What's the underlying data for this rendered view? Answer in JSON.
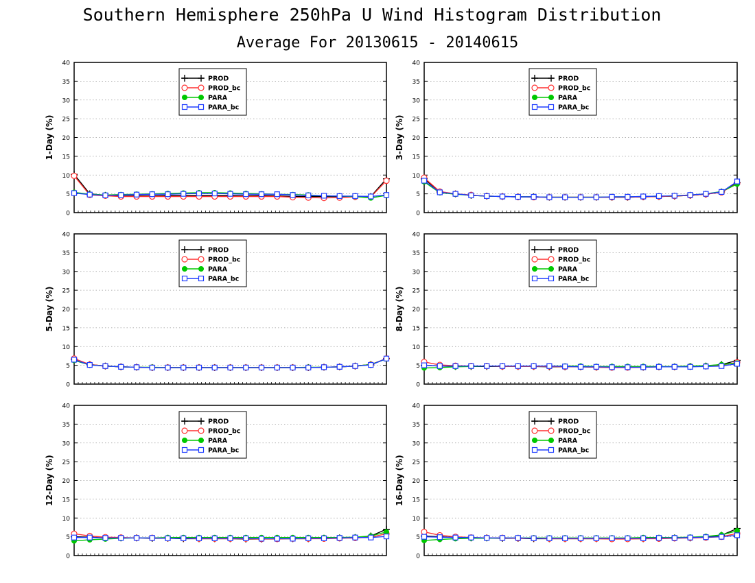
{
  "page": {
    "title": "Southern Hemisphere 250hPa U Wind Histogram Distribution",
    "subtitle": "Average For 20130615 - 20140615"
  },
  "series_meta": [
    {
      "name": "PROD",
      "color": "#000000",
      "marker": "plus"
    },
    {
      "name": "PROD_bc",
      "color": "#ff3030",
      "marker": "circle"
    },
    {
      "name": "PARA",
      "color": "#00c800",
      "marker": "dot"
    },
    {
      "name": "PARA_bc",
      "color": "#1e3cff",
      "marker": "square"
    }
  ],
  "chart_data": [
    {
      "type": "line",
      "ylabel": "1-Day (%)",
      "ylim": [
        0,
        40
      ],
      "yticks": [
        0,
        5,
        10,
        15,
        20,
        25,
        30,
        35,
        40
      ],
      "grid": "horizontal-dotted",
      "legend_position": "top-center",
      "x": [
        1,
        2,
        3,
        4,
        5,
        6,
        7,
        8,
        9,
        10,
        11,
        12,
        13,
        14,
        15,
        16,
        17,
        18,
        19,
        20,
        21
      ],
      "series": [
        {
          "name": "PROD",
          "values": [
            10.2,
            5.0,
            4.6,
            4.4,
            4.5,
            4.5,
            4.6,
            4.6,
            4.6,
            4.6,
            4.6,
            4.5,
            4.6,
            4.5,
            4.3,
            4.3,
            4.3,
            4.3,
            4.3,
            4.3,
            9.0
          ]
        },
        {
          "name": "PROD_bc",
          "values": [
            9.8,
            4.7,
            4.5,
            4.3,
            4.3,
            4.3,
            4.3,
            4.3,
            4.3,
            4.3,
            4.3,
            4.3,
            4.3,
            4.3,
            4.1,
            4.0,
            3.9,
            4.0,
            4.2,
            4.2,
            8.5
          ]
        },
        {
          "name": "PARA",
          "values": [
            5.4,
            4.9,
            4.7,
            4.8,
            4.9,
            5.0,
            5.1,
            5.2,
            5.3,
            5.3,
            5.2,
            5.1,
            5.0,
            4.9,
            4.8,
            4.7,
            4.5,
            4.4,
            4.3,
            3.9,
            4.6
          ]
        },
        {
          "name": "PARA_bc",
          "values": [
            5.2,
            4.8,
            4.6,
            4.7,
            4.8,
            4.9,
            4.9,
            5.0,
            5.1,
            5.1,
            5.0,
            4.9,
            4.9,
            4.9,
            4.7,
            4.6,
            4.5,
            4.4,
            4.4,
            4.3,
            4.7
          ]
        }
      ]
    },
    {
      "type": "line",
      "ylabel": "3-Day (%)",
      "ylim": [
        0,
        40
      ],
      "yticks": [
        0,
        5,
        10,
        15,
        20,
        25,
        30,
        35,
        40
      ],
      "grid": "horizontal-dotted",
      "legend_position": "top-center",
      "x": [
        1,
        2,
        3,
        4,
        5,
        6,
        7,
        8,
        9,
        10,
        11,
        12,
        13,
        14,
        15,
        16,
        17,
        18,
        19,
        20,
        21
      ],
      "series": [
        {
          "name": "PROD",
          "values": [
            9.0,
            5.5,
            5.0,
            4.6,
            4.4,
            4.3,
            4.2,
            4.2,
            4.1,
            4.1,
            4.1,
            4.1,
            4.1,
            4.1,
            4.2,
            4.3,
            4.4,
            4.6,
            4.9,
            5.5,
            8.0
          ]
        },
        {
          "name": "PROD_bc",
          "values": [
            9.3,
            5.6,
            5.0,
            4.7,
            4.4,
            4.3,
            4.2,
            4.1,
            4.1,
            4.1,
            4.1,
            4.1,
            4.1,
            4.1,
            4.2,
            4.3,
            4.4,
            4.6,
            4.9,
            5.4,
            7.8
          ]
        },
        {
          "name": "PARA",
          "values": [
            8.2,
            5.3,
            4.9,
            4.6,
            4.4,
            4.3,
            4.2,
            4.2,
            4.1,
            4.1,
            4.1,
            4.1,
            4.2,
            4.2,
            4.3,
            4.4,
            4.5,
            4.7,
            5.0,
            5.6,
            7.6
          ]
        },
        {
          "name": "PARA_bc",
          "values": [
            8.5,
            5.4,
            5.0,
            4.6,
            4.4,
            4.3,
            4.2,
            4.2,
            4.1,
            4.1,
            4.1,
            4.1,
            4.2,
            4.2,
            4.3,
            4.4,
            4.5,
            4.7,
            5.0,
            5.5,
            8.3
          ]
        }
      ]
    },
    {
      "type": "line",
      "ylabel": "5-Day (%)",
      "ylim": [
        0,
        40
      ],
      "yticks": [
        0,
        5,
        10,
        15,
        20,
        25,
        30,
        35,
        40
      ],
      "grid": "horizontal-dotted",
      "legend_position": "top-center",
      "x": [
        1,
        2,
        3,
        4,
        5,
        6,
        7,
        8,
        9,
        10,
        11,
        12,
        13,
        14,
        15,
        16,
        17,
        18,
        19,
        20,
        21
      ],
      "series": [
        {
          "name": "PROD",
          "values": [
            6.6,
            5.2,
            4.8,
            4.6,
            4.5,
            4.4,
            4.4,
            4.4,
            4.4,
            4.4,
            4.4,
            4.4,
            4.4,
            4.4,
            4.4,
            4.4,
            4.5,
            4.6,
            4.8,
            5.2,
            6.8
          ]
        },
        {
          "name": "PROD_bc",
          "values": [
            6.8,
            5.2,
            4.8,
            4.6,
            4.5,
            4.4,
            4.4,
            4.4,
            4.4,
            4.4,
            4.4,
            4.4,
            4.4,
            4.4,
            4.4,
            4.4,
            4.5,
            4.6,
            4.8,
            5.2,
            6.8
          ]
        },
        {
          "name": "PARA",
          "values": [
            6.3,
            5.1,
            4.8,
            4.6,
            4.5,
            4.5,
            4.4,
            4.4,
            4.4,
            4.4,
            4.4,
            4.4,
            4.4,
            4.4,
            4.4,
            4.5,
            4.5,
            4.6,
            4.8,
            5.2,
            6.7
          ]
        },
        {
          "name": "PARA_bc",
          "values": [
            6.5,
            5.1,
            4.8,
            4.6,
            4.5,
            4.4,
            4.4,
            4.4,
            4.4,
            4.4,
            4.4,
            4.4,
            4.4,
            4.4,
            4.4,
            4.4,
            4.5,
            4.6,
            4.8,
            5.1,
            6.8
          ]
        }
      ]
    },
    {
      "type": "line",
      "ylabel": "8-Day (%)",
      "ylim": [
        0,
        40
      ],
      "yticks": [
        0,
        5,
        10,
        15,
        20,
        25,
        30,
        35,
        40
      ],
      "grid": "horizontal-dotted",
      "legend_position": "top-center",
      "x": [
        1,
        2,
        3,
        4,
        5,
        6,
        7,
        8,
        9,
        10,
        11,
        12,
        13,
        14,
        15,
        16,
        17,
        18,
        19,
        20,
        21
      ],
      "series": [
        {
          "name": "PROD",
          "values": [
            5.0,
            4.8,
            4.7,
            4.7,
            4.7,
            4.7,
            4.7,
            4.7,
            4.6,
            4.6,
            4.6,
            4.5,
            4.5,
            4.5,
            4.5,
            4.6,
            4.6,
            4.7,
            4.8,
            5.2,
            6.3
          ]
        },
        {
          "name": "PROD_bc",
          "values": [
            5.9,
            5.1,
            4.9,
            4.8,
            4.8,
            4.7,
            4.7,
            4.7,
            4.7,
            4.6,
            4.6,
            4.5,
            4.4,
            4.4,
            4.5,
            4.6,
            4.6,
            4.7,
            4.8,
            5.0,
            5.8
          ]
        },
        {
          "name": "PARA",
          "values": [
            4.3,
            4.4,
            4.6,
            4.7,
            4.8,
            4.8,
            4.8,
            4.8,
            4.8,
            4.8,
            4.8,
            4.7,
            4.7,
            4.7,
            4.7,
            4.7,
            4.7,
            4.8,
            4.9,
            5.2,
            5.6
          ]
        },
        {
          "name": "PARA_bc",
          "values": [
            5.0,
            4.8,
            4.8,
            4.8,
            4.8,
            4.8,
            4.8,
            4.8,
            4.8,
            4.7,
            4.6,
            4.6,
            4.5,
            4.5,
            4.5,
            4.6,
            4.6,
            4.6,
            4.7,
            4.8,
            5.4
          ]
        }
      ]
    },
    {
      "type": "line",
      "ylabel": "12-Day (%)",
      "ylim": [
        0,
        40
      ],
      "yticks": [
        0,
        5,
        10,
        15,
        20,
        25,
        30,
        35,
        40
      ],
      "grid": "horizontal-dotted",
      "legend_position": "top-center",
      "x": [
        1,
        2,
        3,
        4,
        5,
        6,
        7,
        8,
        9,
        10,
        11,
        12,
        13,
        14,
        15,
        16,
        17,
        18,
        19,
        20,
        21
      ],
      "series": [
        {
          "name": "PROD",
          "values": [
            5.0,
            4.9,
            4.7,
            4.7,
            4.7,
            4.6,
            4.6,
            4.5,
            4.5,
            4.5,
            4.5,
            4.4,
            4.4,
            4.5,
            4.5,
            4.5,
            4.6,
            4.7,
            4.8,
            5.2,
            7.0
          ]
        },
        {
          "name": "PROD_bc",
          "values": [
            5.8,
            5.2,
            4.9,
            4.8,
            4.7,
            4.7,
            4.6,
            4.6,
            4.5,
            4.5,
            4.5,
            4.5,
            4.4,
            4.4,
            4.5,
            4.5,
            4.5,
            4.6,
            4.7,
            4.9,
            5.8
          ]
        },
        {
          "name": "PARA",
          "values": [
            3.9,
            4.2,
            4.4,
            4.6,
            4.7,
            4.7,
            4.8,
            4.8,
            4.8,
            4.8,
            4.8,
            4.8,
            4.8,
            4.8,
            4.8,
            4.8,
            4.8,
            4.8,
            4.9,
            5.2,
            6.3
          ]
        },
        {
          "name": "PARA_bc",
          "values": [
            4.8,
            4.8,
            4.7,
            4.7,
            4.7,
            4.7,
            4.6,
            4.6,
            4.6,
            4.6,
            4.6,
            4.6,
            4.5,
            4.5,
            4.5,
            4.6,
            4.6,
            4.7,
            4.8,
            4.8,
            5.1
          ]
        }
      ]
    },
    {
      "type": "line",
      "ylabel": "16-Day (%)",
      "ylim": [
        0,
        40
      ],
      "yticks": [
        0,
        5,
        10,
        15,
        20,
        25,
        30,
        35,
        40
      ],
      "grid": "horizontal-dotted",
      "legend_position": "top-center",
      "x": [
        1,
        2,
        3,
        4,
        5,
        6,
        7,
        8,
        9,
        10,
        11,
        12,
        13,
        14,
        15,
        16,
        17,
        18,
        19,
        20,
        21
      ],
      "series": [
        {
          "name": "PROD",
          "values": [
            5.2,
            5.0,
            4.8,
            4.7,
            4.7,
            4.6,
            4.6,
            4.5,
            4.5,
            4.5,
            4.5,
            4.5,
            4.5,
            4.5,
            4.5,
            4.6,
            4.7,
            4.7,
            4.9,
            5.4,
            7.2
          ]
        },
        {
          "name": "PROD_bc",
          "values": [
            6.3,
            5.4,
            5.0,
            4.8,
            4.7,
            4.7,
            4.6,
            4.6,
            4.5,
            4.5,
            4.5,
            4.5,
            4.4,
            4.4,
            4.5,
            4.5,
            4.6,
            4.7,
            4.8,
            5.0,
            5.9
          ]
        },
        {
          "name": "PARA",
          "values": [
            4.0,
            4.3,
            4.5,
            4.6,
            4.6,
            4.7,
            4.7,
            4.7,
            4.7,
            4.7,
            4.7,
            4.7,
            4.7,
            4.7,
            4.8,
            4.8,
            4.8,
            4.9,
            5.1,
            5.5,
            6.6
          ]
        },
        {
          "name": "PARA_bc",
          "values": [
            5.0,
            4.9,
            4.8,
            4.8,
            4.7,
            4.7,
            4.7,
            4.6,
            4.6,
            4.6,
            4.6,
            4.6,
            4.6,
            4.6,
            4.6,
            4.7,
            4.7,
            4.8,
            4.9,
            5.0,
            5.4
          ]
        }
      ]
    }
  ]
}
